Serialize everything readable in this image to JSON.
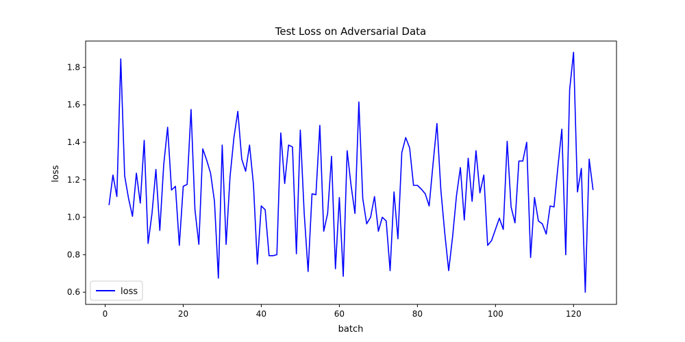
{
  "chart_data": {
    "type": "line",
    "title": "Test Loss on Adversarial Data",
    "xlabel": "batch",
    "ylabel": "loss",
    "xlim": [
      -5,
      131
    ],
    "ylim": [
      0.535,
      1.94
    ],
    "xticks": [
      0,
      20,
      40,
      60,
      80,
      100,
      120
    ],
    "yticks": [
      0.6,
      0.8,
      1.0,
      1.2,
      1.4,
      1.6,
      1.8
    ],
    "ytick_labels": [
      "0.6",
      "0.8",
      "1.0",
      "1.2",
      "1.4",
      "1.6",
      "1.8"
    ],
    "grid": false,
    "legend_position": "lower-left",
    "series": [
      {
        "name": "loss",
        "color": "#0000ff",
        "x": [
          1,
          2,
          3,
          4,
          5,
          6,
          7,
          8,
          9,
          10,
          11,
          12,
          13,
          14,
          15,
          16,
          17,
          18,
          19,
          20,
          21,
          22,
          23,
          24,
          25,
          26,
          27,
          28,
          29,
          30,
          31,
          32,
          33,
          34,
          35,
          36,
          37,
          38,
          39,
          40,
          41,
          42,
          43,
          44,
          45,
          46,
          47,
          48,
          49,
          50,
          51,
          52,
          53,
          54,
          55,
          56,
          57,
          58,
          59,
          60,
          61,
          62,
          63,
          64,
          65,
          66,
          67,
          68,
          69,
          70,
          71,
          72,
          73,
          74,
          75,
          76,
          77,
          78,
          79,
          80,
          81,
          82,
          83,
          84,
          85,
          86,
          87,
          88,
          89,
          90,
          91,
          92,
          93,
          94,
          95,
          96,
          97,
          98,
          99,
          100,
          101,
          102,
          103,
          104,
          105,
          106,
          107,
          108,
          109,
          110,
          111,
          112,
          113,
          114,
          115,
          116,
          117,
          118,
          119,
          120,
          121,
          122,
          123,
          124,
          125
        ],
        "values": [
          1.065,
          1.225,
          1.11,
          1.845,
          1.22,
          1.1,
          1.005,
          1.235,
          1.075,
          1.41,
          0.86,
          1.02,
          1.255,
          0.93,
          1.28,
          1.48,
          1.145,
          1.165,
          0.85,
          1.165,
          1.175,
          1.575,
          1.04,
          0.855,
          1.365,
          1.305,
          1.235,
          1.085,
          0.675,
          1.385,
          0.855,
          1.215,
          1.425,
          1.565,
          1.31,
          1.245,
          1.385,
          1.175,
          0.75,
          1.06,
          1.04,
          0.795,
          0.795,
          0.8,
          1.45,
          1.18,
          1.385,
          1.375,
          0.805,
          1.465,
          1.02,
          0.71,
          1.125,
          1.12,
          1.49,
          0.925,
          1.02,
          1.325,
          0.725,
          1.105,
          0.685,
          1.355,
          1.17,
          1.02,
          1.615,
          1.1,
          0.965,
          1.0,
          1.11,
          0.925,
          1.0,
          0.98,
          0.715,
          1.135,
          0.885,
          1.345,
          1.425,
          1.37,
          1.17,
          1.17,
          1.15,
          1.125,
          1.06,
          1.285,
          1.5,
          1.145,
          0.915,
          0.715,
          0.895,
          1.115,
          1.265,
          0.985,
          1.315,
          1.085,
          1.355,
          1.13,
          1.225,
          0.85,
          0.875,
          0.935,
          0.995,
          0.935,
          1.405,
          1.055,
          0.97,
          1.3,
          1.3,
          1.4,
          0.785,
          1.105,
          0.98,
          0.965,
          0.91,
          1.06,
          1.055,
          1.27,
          1.47,
          0.8,
          1.68,
          1.88,
          1.135,
          1.26,
          0.6,
          1.31,
          1.145
        ]
      }
    ]
  }
}
